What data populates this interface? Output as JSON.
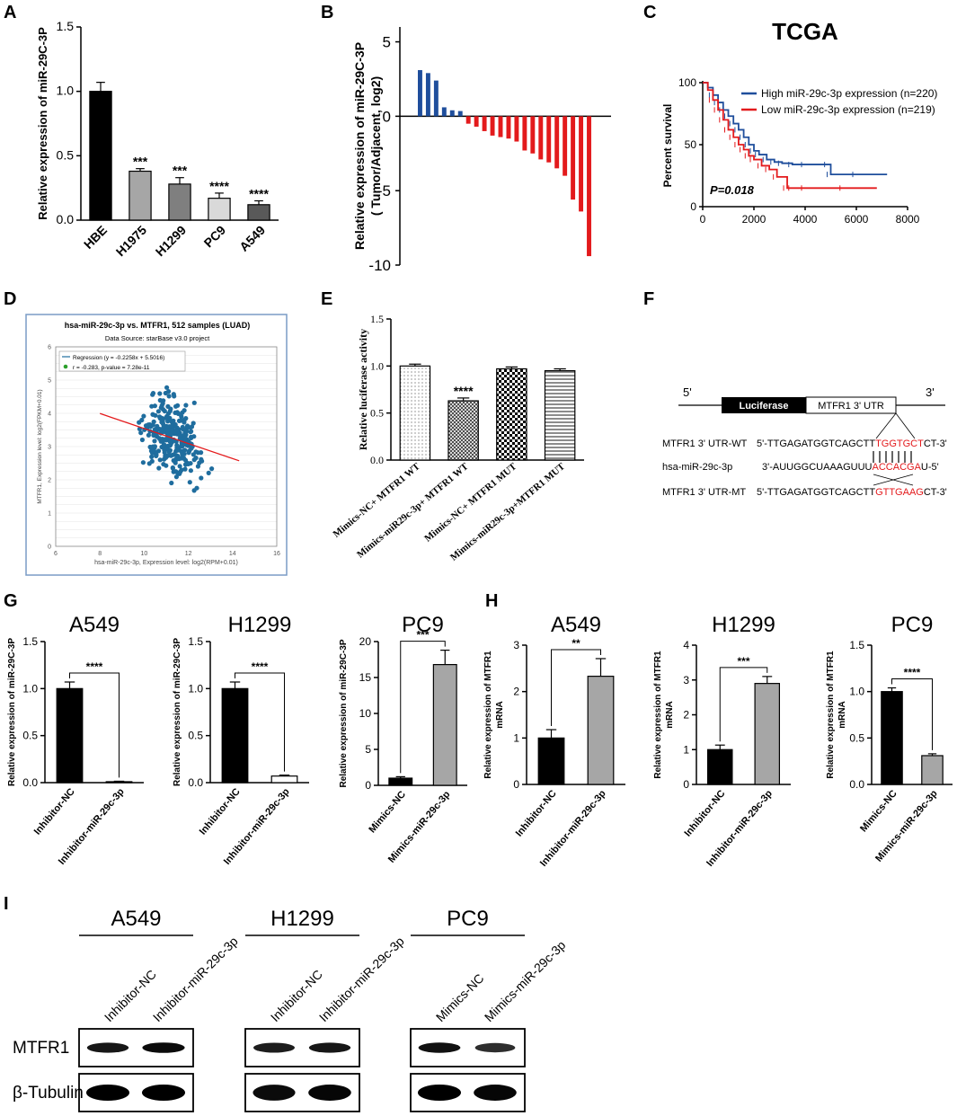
{
  "colors": {
    "black": "#000000",
    "gray_dark": "#7f7f7f",
    "gray_light": "#c8c8c8",
    "gray_mid": "#595959",
    "blue": "#1f4e9c",
    "red": "#e31a1c",
    "scatter_dot": "#1f6d9e",
    "trend": "#e41a1c"
  },
  "panels": {
    "A": {
      "label": "A"
    },
    "B": {
      "label": "B"
    },
    "C": {
      "label": "C"
    },
    "D": {
      "label": "D"
    },
    "E": {
      "label": "E"
    },
    "F": {
      "label": "F"
    },
    "G": {
      "label": "G"
    },
    "H": {
      "label": "H"
    },
    "I": {
      "label": "I"
    }
  },
  "chart_data": [
    {
      "id": "A",
      "type": "bar",
      "ylabel": "Relative expression of miR-29C-3P",
      "categories": [
        "HBE",
        "H1975",
        "H1299",
        "PC9",
        "A549"
      ],
      "values": [
        1.0,
        0.38,
        0.28,
        0.17,
        0.12
      ],
      "errors": [
        0.07,
        0.02,
        0.05,
        0.04,
        0.03
      ],
      "significance": [
        "",
        "***",
        "***",
        "****",
        "****"
      ],
      "fills": [
        "#000000",
        "#a6a6a6",
        "#7f7f7f",
        "#d9d9d9",
        "#595959"
      ],
      "ylim": [
        0,
        1.5
      ],
      "yticks": [
        "0.0",
        "0.5",
        "1.0",
        "1.5"
      ]
    },
    {
      "id": "B",
      "type": "bar",
      "ylabel": "Relative expression of miR-29C-3P",
      "ylabel2": "( Tumor/Adjacent, log2)",
      "values": [
        3.1,
        2.9,
        2.4,
        0.6,
        0.4,
        0.35,
        -0.5,
        -0.7,
        -1.0,
        -1.3,
        -1.4,
        -1.5,
        -1.7,
        -2.3,
        -2.5,
        -2.9,
        -3.1,
        -3.5,
        -4.0,
        -5.6,
        -6.4,
        -9.4
      ],
      "ylim": [
        -10,
        6
      ],
      "yticks": [
        "-10",
        "-5",
        "0",
        "5"
      ]
    },
    {
      "id": "C",
      "type": "line",
      "title": "TCGA",
      "ylabel": "Percent survival",
      "legend": [
        "High miR-29c-3p expression (n=220)",
        "Low miR-29c-3p expression (n=219)"
      ],
      "pvalue": "P=0.018",
      "xlim": [
        0,
        8000
      ],
      "ylim": [
        0,
        100
      ],
      "xticks": [
        "0",
        "2000",
        "4000",
        "6000",
        "8000"
      ],
      "yticks": [
        "0",
        "50",
        "100"
      ],
      "series": [
        {
          "name": "High miR-29c-3p expression (n=220)",
          "x": [
            0,
            200,
            400,
            600,
            800,
            1000,
            1200,
            1400,
            1600,
            1800,
            2000,
            2200,
            2500,
            2800,
            3100,
            3500,
            4000,
            4900,
            5000,
            6000,
            7200
          ],
          "y": [
            100,
            96,
            90,
            84,
            78,
            73,
            67,
            62,
            56,
            50,
            45,
            42,
            38,
            36,
            35,
            34,
            34,
            34,
            26,
            26,
            26
          ]
        },
        {
          "name": "Low miR-29c-3p expression (n=219)",
          "x": [
            0,
            200,
            400,
            600,
            800,
            1000,
            1200,
            1400,
            1600,
            1800,
            2000,
            2300,
            2600,
            2900,
            3300,
            3500,
            4000,
            5500,
            6800
          ],
          "y": [
            100,
            94,
            86,
            78,
            70,
            62,
            56,
            50,
            46,
            41,
            38,
            33,
            30,
            24,
            15,
            15,
            15,
            15,
            15
          ]
        }
      ]
    },
    {
      "id": "D",
      "type": "scatter",
      "title": "hsa-miR-29c-3p vs. MTFR1, 512 samples (LUAD)",
      "subtitle": "Data Source: starBase v3.0 project",
      "legend_regression": "Regression (y = -0.2258x + 5.5016)",
      "legend_stats": "r = -0.283, p-value = 7.28e-11",
      "xlabel": "hsa-miR-29c-3p, Expression level: log2(RPM+0.01)",
      "ylabel": "MTFR1, Expression level: log2(FPKM+0.01)",
      "xlim": [
        6,
        16
      ],
      "ylim": [
        0,
        6
      ],
      "xticks": [
        "6",
        "8",
        "10",
        "12",
        "14",
        "16"
      ],
      "yticks": [
        "0",
        "1",
        "2",
        "3",
        "4",
        "5",
        "6"
      ],
      "n_points": 512,
      "slope": -0.2258,
      "intercept": 5.5016
    },
    {
      "id": "E",
      "type": "bar",
      "ylabel": "Relative luciferase activity",
      "categories": [
        "Mimics-NC+ MTFR1 WT",
        "Mimics-miR29c-3p+ MTFR1 WT",
        "Mimics-NC+ MTFR1 MUT",
        "Mimics-miR29c-3p+MTFR1 MUT"
      ],
      "values": [
        1.0,
        0.63,
        0.97,
        0.95
      ],
      "errors": [
        0.02,
        0.03,
        0.02,
        0.02
      ],
      "significance": [
        "",
        "****",
        "",
        ""
      ],
      "ylim": [
        0,
        1.5
      ],
      "yticks": [
        "0.0",
        "0.5",
        "1.0",
        "1.5"
      ]
    },
    {
      "id": "G1",
      "type": "bar",
      "title": "A549",
      "ylabel": "Relative expression of miR-29C-3P",
      "categories": [
        "Inhibitor-NC",
        "Inhibitor-miR-29c-3p"
      ],
      "values": [
        1.0,
        0.01
      ],
      "errors": [
        0.07,
        0.005
      ],
      "significance": "****",
      "ylim": [
        0,
        1.5
      ],
      "yticks": [
        "0.0",
        "0.5",
        "1.0",
        "1.5"
      ]
    },
    {
      "id": "G2",
      "type": "bar",
      "title": "H1299",
      "ylabel": "Relative expression of miR-29C-3P",
      "categories": [
        "Inhibitor-NC",
        "Inhibitor-miR-29c-3p"
      ],
      "values": [
        1.0,
        0.07
      ],
      "errors": [
        0.07,
        0.01
      ],
      "significance": "****",
      "ylim": [
        0,
        1.5
      ],
      "yticks": [
        "0.0",
        "0.5",
        "1.0",
        "1.5"
      ]
    },
    {
      "id": "G3",
      "type": "bar",
      "title": "PC9",
      "ylabel": "Relative expression of miR-29C-3P",
      "categories": [
        "Mimics-NC",
        "Mimics-miR-29c-3p"
      ],
      "values": [
        1.0,
        16.8
      ],
      "errors": [
        0.2,
        2.0
      ],
      "significance": "***",
      "ylim": [
        0,
        20
      ],
      "yticks": [
        "0",
        "5",
        "10",
        "15",
        "20"
      ]
    },
    {
      "id": "H1",
      "type": "bar",
      "title": "A549",
      "ylabel": "Relative expression of MTFR1",
      "ylabel2": "mRNA",
      "categories": [
        "Inhibitor-NC",
        "Inhibitor-miR-29c-3p"
      ],
      "values": [
        1.0,
        2.33
      ],
      "errors": [
        0.18,
        0.38
      ],
      "significance": "**",
      "ylim": [
        0,
        3
      ],
      "yticks": [
        "0",
        "1",
        "2",
        "3"
      ]
    },
    {
      "id": "H2",
      "type": "bar",
      "title": "H1299",
      "ylabel": "Relative expression of MTFR1",
      "ylabel2": "mRNA",
      "categories": [
        "Inhibitor-NC",
        "Inhibitor-miR-29c-3p"
      ],
      "values": [
        1.0,
        2.9
      ],
      "errors": [
        0.13,
        0.2
      ],
      "significance": "***",
      "ylim": [
        0,
        4
      ],
      "yticks": [
        "0",
        "1",
        "2",
        "3",
        "4"
      ]
    },
    {
      "id": "H3",
      "type": "bar",
      "title": "PC9",
      "ylabel": "Relative expression of MTFR1",
      "ylabel2": "mRNA",
      "categories": [
        "Mimics-NC",
        "Mimics-miR-29c-3p"
      ],
      "values": [
        1.0,
        0.31
      ],
      "errors": [
        0.04,
        0.02
      ],
      "significance": "****",
      "ylim": [
        0,
        1.5
      ],
      "yticks": [
        "0.0",
        "0.5",
        "1.0",
        "1.5"
      ]
    }
  ],
  "panel_F": {
    "five_prime": "5'",
    "three_prime": "3'",
    "luciferase": "Luciferase",
    "utr": "MTFR1 3' UTR",
    "rows": [
      {
        "label": "MTFR1 3' UTR-WT",
        "seq_prefix": "5'-TTGAGATGGTCAGCTT",
        "seq_red": "TGGTGCT",
        "seq_suffix": "CT-3'"
      },
      {
        "label": "hsa-miR-29c-3p",
        "seq_prefix": "3'-AUUGGCUAAAGUUU",
        "seq_red": "ACCACGA",
        "seq_suffix": "U-5'"
      },
      {
        "label": "MTFR1 3' UTR-MT",
        "seq_prefix": "5'-TTGAGATGGTCAGCTT",
        "seq_red": "GTTGAAG",
        "seq_suffix": "CT-3'"
      }
    ]
  },
  "panel_I": {
    "groups": [
      {
        "title": "A549",
        "lanes": [
          "Inhibitor-NC",
          "Inhibitor-miR-29c-3p"
        ]
      },
      {
        "title": "H1299",
        "lanes": [
          "Inhibitor-NC",
          "Inhibitor-miR-29c-3p"
        ]
      },
      {
        "title": "PC9",
        "lanes": [
          "Mimics-NC",
          "Mimics-miR-29c-3p"
        ]
      }
    ],
    "rows": [
      "MTFR1",
      "β-Tubulin"
    ],
    "band_intensity": {
      "MTFR1": [
        [
          0.8,
          0.9
        ],
        [
          0.75,
          0.8
        ],
        [
          0.85,
          0.6
        ]
      ],
      "β-Tubulin": [
        [
          1,
          1
        ],
        [
          0.9,
          0.95
        ],
        [
          1,
          0.95
        ]
      ]
    }
  }
}
